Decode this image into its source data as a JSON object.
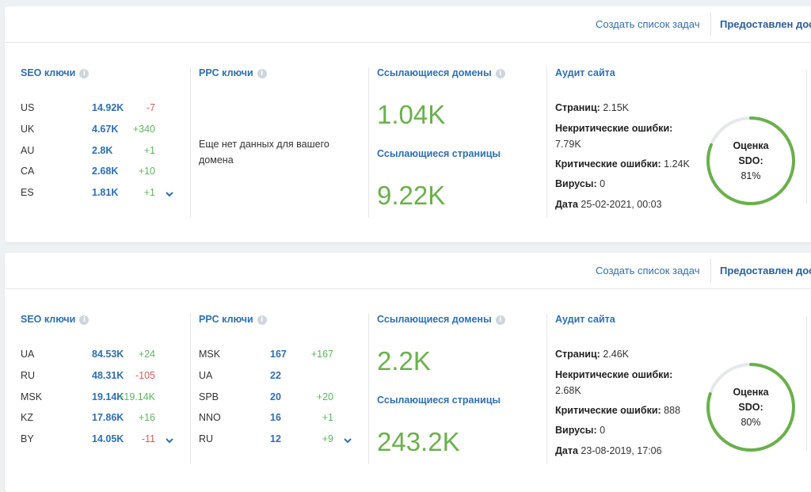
{
  "colors": {
    "accent": "#2f6fb1",
    "positive": "#5cb85c",
    "negative": "#e05a4f",
    "metric": "#6ab04c",
    "gauge": "#6ab04c",
    "gauge_track": "#e6e8eb"
  },
  "cards": [
    {
      "header": {
        "tasks_link": "Создать список задач",
        "access_link": "Предоставлен дос"
      },
      "seo": {
        "title": "SEO ключи",
        "rows": [
          {
            "code": "US",
            "value": "14.92K",
            "delta": "-7",
            "sign": "neg"
          },
          {
            "code": "UK",
            "value": "4.67K",
            "delta": "+340",
            "sign": "pos"
          },
          {
            "code": "AU",
            "value": "2.8K",
            "delta": "+1",
            "sign": "pos"
          },
          {
            "code": "CA",
            "value": "2.68K",
            "delta": "+10",
            "sign": "pos"
          },
          {
            "code": "ES",
            "value": "1.81K",
            "delta": "+1",
            "sign": "pos"
          }
        ]
      },
      "ppc": {
        "title": "PPC ключи",
        "empty_text": "Еще нет данных для вашего домена",
        "rows": []
      },
      "backlinks": {
        "domains_title": "Ссылающиеся домены",
        "domains_value": "1.04K",
        "pages_title": "Ссылающиеся страницы",
        "pages_value": "9.22K"
      },
      "audit": {
        "title": "Аудит сайта",
        "pages_label": "Страниц:",
        "pages_value": "2.15K",
        "noncritical_label": "Некритические ошибки:",
        "noncritical_value": "7.79K",
        "critical_label": "Критические ошибки:",
        "critical_value": "1.24K",
        "viruses_label": "Вирусы:",
        "viruses_value": "0",
        "date_label": "Дата",
        "date_value": "25-02-2021, 00:03",
        "score_label_1": "Оценка",
        "score_label_2": "SDO:",
        "score_value": "81%",
        "score_fraction": 0.81
      }
    },
    {
      "header": {
        "tasks_link": "Создать список задач",
        "access_link": "Предоставлен дос"
      },
      "seo": {
        "title": "SEO ключи",
        "rows": [
          {
            "code": "UA",
            "value": "84.53K",
            "delta": "+24",
            "sign": "pos"
          },
          {
            "code": "RU",
            "value": "48.31K",
            "delta": "-105",
            "sign": "neg"
          },
          {
            "code": "MSK",
            "value": "19.14K",
            "delta": "+19.14K",
            "sign": "pos"
          },
          {
            "code": "KZ",
            "value": "17.86K",
            "delta": "+16",
            "sign": "pos"
          },
          {
            "code": "BY",
            "value": "14.05K",
            "delta": "-11",
            "sign": "neg"
          }
        ]
      },
      "ppc": {
        "title": "PPC ключи",
        "empty_text": "",
        "rows": [
          {
            "code": "MSK",
            "value": "167",
            "delta": "+167",
            "sign": "pos"
          },
          {
            "code": "UA",
            "value": "22",
            "delta": "",
            "sign": "pos"
          },
          {
            "code": "SPB",
            "value": "20",
            "delta": "+20",
            "sign": "pos"
          },
          {
            "code": "NNO",
            "value": "16",
            "delta": "+1",
            "sign": "pos"
          },
          {
            "code": "RU",
            "value": "12",
            "delta": "+9",
            "sign": "pos"
          }
        ]
      },
      "backlinks": {
        "domains_title": "Ссылающиеся домены",
        "domains_value": "2.2K",
        "pages_title": "Ссылающиеся страницы",
        "pages_value": "243.2K"
      },
      "audit": {
        "title": "Аудит сайта",
        "pages_label": "Страниц:",
        "pages_value": "2.46K",
        "noncritical_label": "Некритические ошибки:",
        "noncritical_value": "2.68K",
        "critical_label": "Критические ошибки:",
        "critical_value": "888",
        "viruses_label": "Вирусы:",
        "viruses_value": "0",
        "date_label": "Дата",
        "date_value": "23-08-2019, 17:06",
        "score_label_1": "Оценка",
        "score_label_2": "SDO:",
        "score_value": "80%",
        "score_fraction": 0.8
      }
    }
  ]
}
